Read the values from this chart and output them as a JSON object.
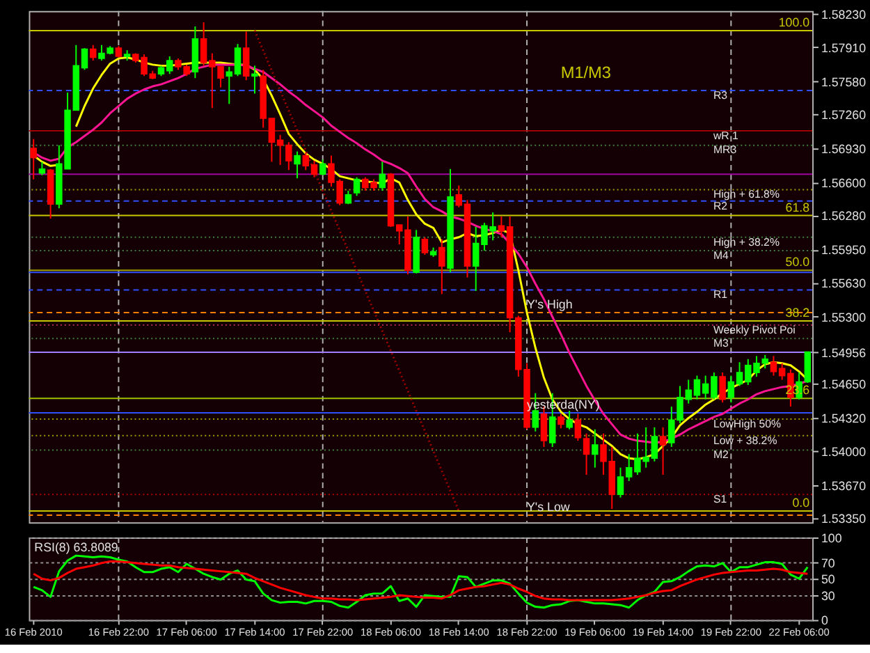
{
  "chart_data": [
    {
      "type": "candlestick",
      "categories": [
        "16 Feb 2010",
        null,
        null,
        null,
        null,
        null,
        null,
        null,
        null,
        null,
        "16 Feb 22:00",
        null,
        null,
        null,
        null,
        null,
        null,
        null,
        "17 Feb 06:00",
        null,
        null,
        null,
        null,
        null,
        null,
        null,
        "17 Feb 14:00",
        null,
        null,
        null,
        null,
        null,
        null,
        null,
        "17 Feb 22:00",
        null,
        null,
        null,
        null,
        null,
        null,
        null,
        "18 Feb 06:00",
        null,
        null,
        null,
        null,
        null,
        null,
        null,
        "18 Feb 14:00",
        null,
        null,
        null,
        null,
        null,
        null,
        null,
        "18 Feb 22:00",
        null,
        null,
        null,
        null,
        null,
        null,
        null,
        "19 Feb 06:00",
        null,
        null,
        null,
        null,
        null,
        null,
        null,
        "19 Feb 14:00",
        null,
        null,
        null,
        null,
        null,
        null,
        null,
        "19 Feb 22:00",
        null,
        null,
        null,
        null,
        null,
        null,
        null,
        "22 Feb 06:00",
        null
      ],
      "ohlc": [
        [
          1.5693,
          1.5702,
          1.5663,
          1.5684
        ],
        [
          1.5669,
          1.568,
          1.5667,
          1.5673
        ],
        [
          1.5672,
          1.5673,
          1.5625,
          1.5639
        ],
        [
          1.5639,
          1.5696,
          1.5635,
          1.5678
        ],
        [
          1.5673,
          1.5747,
          1.5673,
          1.573
        ],
        [
          1.573,
          1.5793,
          1.573,
          1.5773
        ],
        [
          1.5771,
          1.579,
          1.5769,
          1.5789
        ],
        [
          1.5789,
          1.5793,
          1.5778,
          1.5781
        ],
        [
          1.578,
          1.5793,
          1.5778,
          1.5785
        ],
        [
          1.5785,
          1.5792,
          1.5784,
          1.579
        ],
        [
          1.579,
          1.5792,
          1.5781,
          1.5782
        ],
        [
          1.5782,
          1.5788,
          1.5778,
          1.5784
        ],
        [
          1.5784,
          1.5785,
          1.5776,
          1.5778
        ],
        [
          1.5781,
          1.5784,
          1.5763,
          1.5765
        ],
        [
          1.5765,
          1.5768,
          1.576,
          1.5761
        ],
        [
          1.5765,
          1.5773,
          1.5763,
          1.5771
        ],
        [
          1.5768,
          1.5782,
          1.5765,
          1.5778
        ],
        [
          1.5778,
          1.578,
          1.5769,
          1.5772
        ],
        [
          1.5772,
          1.5774,
          1.5763,
          1.5765
        ],
        [
          1.5767,
          1.5811,
          1.5761,
          1.5799
        ],
        [
          1.5799,
          1.5815,
          1.5773,
          1.5776
        ],
        [
          1.5778,
          1.5785,
          1.5732,
          1.5772
        ],
        [
          1.5772,
          1.5772,
          1.5752,
          1.5761
        ],
        [
          1.5763,
          1.5772,
          1.5736,
          1.5767
        ],
        [
          1.5765,
          1.5794,
          1.5763,
          1.579
        ],
        [
          1.579,
          1.5806,
          1.5759,
          1.5763
        ],
        [
          1.5763,
          1.5773,
          1.5746,
          1.5765
        ],
        [
          1.5763,
          1.5769,
          1.5713,
          1.5722
        ],
        [
          1.5722,
          1.5722,
          1.568,
          1.5699
        ],
        [
          1.5701,
          1.5706,
          1.5677,
          1.5696
        ],
        [
          1.5696,
          1.5699,
          1.5672,
          1.5681
        ],
        [
          1.5678,
          1.569,
          1.5664,
          1.5686
        ],
        [
          1.5686,
          1.5689,
          1.5672,
          1.5676
        ],
        [
          1.5677,
          1.5681,
          1.5665,
          1.5668
        ],
        [
          1.5668,
          1.5682,
          1.5667,
          1.5678
        ],
        [
          1.5678,
          1.5686,
          1.5656,
          1.566
        ],
        [
          1.5661,
          1.5663,
          1.5638,
          1.564
        ],
        [
          1.564,
          1.5652,
          1.5639,
          1.5648
        ],
        [
          1.565,
          1.5665,
          1.5647,
          1.5663
        ],
        [
          1.5663,
          1.5665,
          1.5652,
          1.5655
        ],
        [
          1.566,
          1.5663,
          1.5652,
          1.5655
        ],
        [
          1.5655,
          1.568,
          1.5652,
          1.5668
        ],
        [
          1.5668,
          1.5669,
          1.5617,
          1.5618
        ],
        [
          1.5619,
          1.5619,
          1.56,
          1.5613
        ],
        [
          1.5614,
          1.5627,
          1.5571,
          1.5575
        ],
        [
          1.5573,
          1.5614,
          1.5572,
          1.5607
        ],
        [
          1.5605,
          1.5607,
          1.559,
          1.5592
        ],
        [
          1.559,
          1.5597,
          1.5588,
          1.5593
        ],
        [
          1.5597,
          1.5605,
          1.5552,
          1.5579
        ],
        [
          1.5577,
          1.5673,
          1.5573,
          1.5646
        ],
        [
          1.5648,
          1.5657,
          1.5636,
          1.5638
        ],
        [
          1.5639,
          1.5643,
          1.5568,
          1.5579
        ],
        [
          1.5579,
          1.5617,
          1.5555,
          1.5601
        ],
        [
          1.56,
          1.5621,
          1.5594,
          1.5618
        ],
        [
          1.5613,
          1.5631,
          1.5604,
          1.5617
        ],
        [
          1.5618,
          1.5627,
          1.5607,
          1.5613
        ],
        [
          1.5617,
          1.5627,
          1.5515,
          1.5529
        ],
        [
          1.5529,
          1.5531,
          1.5472,
          1.5479
        ],
        [
          1.5479,
          1.5485,
          1.5421,
          1.5423
        ],
        [
          1.5423,
          1.5456,
          1.5419,
          1.5439
        ],
        [
          1.5436,
          1.5443,
          1.5404,
          1.541
        ],
        [
          1.5408,
          1.5456,
          1.5404,
          1.5433
        ],
        [
          1.5433,
          1.5436,
          1.5422,
          1.5426
        ],
        [
          1.5423,
          1.5439,
          1.5421,
          1.543
        ],
        [
          1.543,
          1.5436,
          1.541,
          1.5413
        ],
        [
          1.5412,
          1.5417,
          1.5377,
          1.5397
        ],
        [
          1.5397,
          1.5421,
          1.5384,
          1.5406
        ],
        [
          1.5406,
          1.5417,
          1.5377,
          1.539
        ],
        [
          1.539,
          1.5404,
          1.5344,
          1.5358
        ],
        [
          1.5358,
          1.5384,
          1.5355,
          1.5375
        ],
        [
          1.5375,
          1.5397,
          1.5371,
          1.5384
        ],
        [
          1.538,
          1.5417,
          1.5377,
          1.5393
        ],
        [
          1.539,
          1.5423,
          1.5384,
          1.5394
        ],
        [
          1.5393,
          1.5423,
          1.539,
          1.5414
        ],
        [
          1.5414,
          1.5423,
          1.5377,
          1.5406
        ],
        [
          1.5408,
          1.5443,
          1.5404,
          1.543
        ],
        [
          1.543,
          1.5463,
          1.5427,
          1.5452
        ],
        [
          1.545,
          1.5469,
          1.5446,
          1.5459
        ],
        [
          1.5454,
          1.5473,
          1.545,
          1.5469
        ],
        [
          1.5456,
          1.5473,
          1.545,
          1.5465
        ],
        [
          1.5452,
          1.5476,
          1.545,
          1.5472
        ],
        [
          1.5472,
          1.5476,
          1.5447,
          1.545
        ],
        [
          1.5452,
          1.5473,
          1.5447,
          1.5467
        ],
        [
          1.5465,
          1.5486,
          1.5463,
          1.5476
        ],
        [
          1.5467,
          1.5489,
          1.5464,
          1.5483
        ],
        [
          1.5476,
          1.5492,
          1.5472,
          1.5485
        ],
        [
          1.5485,
          1.5493,
          1.548,
          1.5489
        ],
        [
          1.5486,
          1.5492,
          1.5473,
          1.5477
        ],
        [
          1.548,
          1.5485,
          1.5469,
          1.5473
        ],
        [
          1.5475,
          1.5479,
          1.5443,
          1.5452
        ],
        [
          1.5452,
          1.5476,
          1.545,
          1.5467
        ],
        [
          1.5467,
          1.5496,
          1.5466,
          1.5496
        ]
      ],
      "series": [
        {
          "type": "line",
          "color": "#ffff00",
          "values": [
            1.5686,
            1.568,
            1.5676,
            1.5677,
            null,
            1.5714,
            1.5734,
            1.5751,
            1.5764,
            1.5775,
            1.578,
            1.5781,
            1.5779,
            1.5776,
            1.5774,
            1.5773,
            1.5773,
            1.5774,
            1.5775,
            1.5776,
            1.5776,
            1.5776,
            1.5776,
            1.5775,
            1.5774,
            1.5774,
            1.5769,
            1.576,
            1.5744,
            1.5726,
            1.5707,
            1.5697,
            1.5688,
            1.5682,
            1.5678,
            1.5673,
            1.5666,
            1.5664,
            1.5662,
            1.5661,
            1.566,
            1.5659,
            1.5664,
            1.566,
            1.5643,
            1.5629,
            1.562,
            1.5616,
            1.5602,
            1.5605,
            1.5607,
            1.5611,
            1.5608,
            1.5609,
            1.5611,
            1.5614,
            1.5611,
            1.5575,
            1.5534,
            1.55,
            1.5471,
            1.545,
            1.5438,
            1.5431,
            1.5426,
            1.5423,
            1.5417,
            1.5411,
            1.5405,
            1.5397,
            1.5393,
            1.5392,
            1.5394,
            1.5397,
            1.5405,
            1.5413,
            1.5425,
            1.5432,
            1.5438,
            1.5445,
            1.545,
            1.5456,
            1.5461,
            1.5465,
            1.5469,
            1.5478,
            1.5484,
            1.5486,
            1.5485,
            1.5483,
            1.5477,
            1.5469
          ]
        },
        {
          "type": "line",
          "color": "#ff1493",
          "values": [
            1.5689,
            1.5684,
            1.5681,
            1.5683,
            1.5694,
            1.5699,
            1.5705,
            1.5711,
            1.5718,
            1.5727,
            1.5734,
            1.5741,
            1.5746,
            1.575,
            1.5753,
            1.5755,
            1.5758,
            1.5761,
            1.5765,
            1.577,
            1.5772,
            1.5774,
            1.5774,
            1.5774,
            1.5774,
            1.5773,
            1.577,
            1.5767,
            1.5761,
            1.5755,
            1.5748,
            1.5742,
            1.5735,
            1.5729,
            1.5723,
            1.5715,
            1.5709,
            1.5703,
            1.5698,
            1.5692,
            1.5687,
            1.5681,
            1.5678,
            1.5674,
            1.5669,
            1.5656,
            1.5644,
            1.5636,
            1.5632,
            1.5627,
            1.5625,
            1.5622,
            1.5618,
            1.5615,
            1.5613,
            1.561,
            1.5601,
            1.5591,
            1.5578,
            1.5562,
            1.5547,
            1.553,
            1.5513,
            1.5495,
            1.5479,
            1.5463,
            1.5449,
            1.5436,
            1.5426,
            1.5416,
            1.5412,
            1.541,
            1.5409,
            1.5408,
            1.5409,
            1.5412,
            1.5416,
            1.5421,
            1.5425,
            1.5429,
            1.5433,
            1.5436,
            1.5441,
            1.5446,
            1.545,
            1.5455,
            1.5458,
            1.546,
            1.5462,
            1.5463,
            1.5465,
            1.5468
          ]
        },
        {
          "type": "line",
          "color": "#a00000",
          "line_style": "dotted",
          "x": [
            "17 Feb 14:00",
            "18 Feb 14:00"
          ],
          "values": [
            1.5807,
            1.5342
          ]
        }
      ],
      "ylim": [
        1.5331,
        1.5826
      ],
      "yticks": [
        {
          "value": 1.5823,
          "label": "1.58230"
        },
        {
          "value": 1.5791,
          "label": "1.57910"
        },
        {
          "value": 1.5758,
          "label": "1.57580"
        },
        {
          "value": 1.5726,
          "label": "1.57260"
        },
        {
          "value": 1.5693,
          "label": "1.56930"
        },
        {
          "value": 1.566,
          "label": "1.56600"
        },
        {
          "value": 1.5628,
          "label": "1.56280"
        },
        {
          "value": 1.5595,
          "label": "1.55950"
        },
        {
          "value": 1.5563,
          "label": "1.55630"
        },
        {
          "value": 1.553,
          "label": "1.55300"
        },
        {
          "value": 1.54956,
          "label": "1.54956"
        },
        {
          "value": 1.5465,
          "label": "1.54650"
        },
        {
          "value": 1.5432,
          "label": "1.54320"
        },
        {
          "value": 1.54,
          "label": "1.54000"
        },
        {
          "value": 1.5367,
          "label": "1.53670"
        },
        {
          "value": 1.5335,
          "label": "1.53350"
        }
      ],
      "tick_labels": "y",
      "ref_lines": [
        {
          "axis": "x",
          "value": "16 Feb 22:00",
          "color": "#b0b0b0",
          "line_style": "dashed"
        },
        {
          "axis": "x",
          "value": "17 Feb 22:00",
          "color": "#b0b0b0",
          "line_style": "dashed"
        },
        {
          "axis": "x",
          "value": "18 Feb 22:00",
          "color": "#b0b0b0",
          "line_style": "dashed"
        },
        {
          "axis": "x",
          "value": "19 Feb 22:00",
          "color": "#b0b0b0",
          "line_style": "dashed"
        },
        {
          "axis": "y",
          "value": 1.5807,
          "color": "#c8c800"
        },
        {
          "axis": "y",
          "value": 1.5749,
          "label": "R3",
          "color": "#3050ff",
          "line_style": "dashed"
        },
        {
          "axis": "y",
          "value": 1.571,
          "label": "wR 1",
          "color": "#b00000"
        },
        {
          "axis": "y",
          "value": 1.5696,
          "label": "MR3",
          "color": "#408040",
          "line_style": "dotted"
        },
        {
          "axis": "y",
          "value": 1.5668,
          "color": "#a000a0"
        },
        {
          "axis": "y",
          "value": 1.5653,
          "label": "High + 61.8%",
          "color": "#a0a000",
          "line_style": "dotted"
        },
        {
          "axis": "y",
          "value": 1.5642,
          "label": "R2",
          "color": "#3050ff",
          "line_style": "dashed"
        },
        {
          "axis": "y",
          "value": 1.5628,
          "color": "#c8c800"
        },
        {
          "axis": "y",
          "value": 1.5607,
          "label": "High + 38.2%",
          "color": "#408040",
          "line_style": "dotted"
        },
        {
          "axis": "y",
          "value": 1.5594,
          "label": "M4",
          "color": "#408040",
          "line_style": "dotted"
        },
        {
          "axis": "y",
          "value": 1.5575,
          "color": "#a0a000"
        },
        {
          "axis": "y",
          "value": 1.5573,
          "color": "#3050ff"
        },
        {
          "axis": "y",
          "value": 1.5556,
          "label": "R1",
          "color": "#3050ff",
          "line_style": "dashed"
        },
        {
          "axis": "y",
          "value": 1.5534,
          "color": "#ff8000",
          "line_style": "dashed"
        },
        {
          "axis": "y",
          "value": 1.5526,
          "color": "#c8c800"
        },
        {
          "axis": "y",
          "value": 1.5522,
          "label": "Weekly Pivot Poi",
          "color": "#c03060",
          "line_style": "dotted"
        },
        {
          "axis": "y",
          "value": 1.5509,
          "label": "M3",
          "color": "#408040",
          "line_style": "dotted"
        },
        {
          "axis": "y",
          "value": 1.54956,
          "color": "#a080ff"
        },
        {
          "axis": "y",
          "value": 1.5451,
          "color": "#a0c000"
        },
        {
          "axis": "y",
          "value": 1.5437,
          "color": "#3050ff"
        },
        {
          "axis": "y",
          "value": 1.5431,
          "label": "LowHigh 50%",
          "color": "#a0a000",
          "line_style": "dotted"
        },
        {
          "axis": "y",
          "value": 1.5415,
          "label": "Low + 38.2%",
          "color": "#a0a000",
          "line_style": "dotted"
        },
        {
          "axis": "y",
          "value": 1.5401,
          "label": "M2",
          "color": "#408040",
          "line_style": "dotted"
        },
        {
          "axis": "y",
          "value": 1.5358,
          "label": "S1",
          "color": "#b00000",
          "line_style": "dotted"
        },
        {
          "axis": "y",
          "value": 1.5342,
          "color": "#c8c800"
        },
        {
          "axis": "y",
          "value": 1.5338,
          "color": "#ff8000",
          "line_style": "dashed"
        }
      ],
      "annotations": [
        "M1/M3",
        {
          "text": "100.0",
          "y": 1.5807
        },
        {
          "text": "61.8",
          "y": 1.5628
        },
        {
          "text": "50.0",
          "y": 1.5575
        },
        {
          "text": "38.2",
          "y": 1.5526
        },
        {
          "text": "23.6",
          "y": 1.5451
        },
        {
          "text": "0.0",
          "y": 1.5342
        },
        {
          "text": "Y's High",
          "x": "18 Feb 22:00",
          "y": 1.5534
        },
        {
          "text": "yesterda(NY)",
          "x": "18 Feb 22:00",
          "y": 1.5437
        },
        {
          "text": "Y's Low",
          "x": "18 Feb 22:00",
          "y": 1.5338
        }
      ]
    },
    {
      "type": "line",
      "title": "RSI(8) 63.8089",
      "categories": [
        "16 Feb 2010",
        null,
        null,
        null,
        null,
        null,
        null,
        null,
        null,
        null,
        "16 Feb 22:00",
        null,
        null,
        null,
        null,
        null,
        null,
        null,
        "17 Feb 06:00",
        null,
        null,
        null,
        null,
        null,
        null,
        null,
        "17 Feb 14:00",
        null,
        null,
        null,
        null,
        null,
        null,
        null,
        "17 Feb 22:00",
        null,
        null,
        null,
        null,
        null,
        null,
        null,
        "18 Feb 06:00",
        null,
        null,
        null,
        null,
        null,
        null,
        null,
        "18 Feb 14:00",
        null,
        null,
        null,
        null,
        null,
        null,
        null,
        "18 Feb 22:00",
        null,
        null,
        null,
        null,
        null,
        null,
        null,
        "19 Feb 06:00",
        null,
        null,
        null,
        null,
        null,
        null,
        null,
        "19 Feb 14:00",
        null,
        null,
        null,
        null,
        null,
        null,
        null,
        "19 Feb 22:00",
        null,
        null,
        null,
        null,
        null,
        null,
        null,
        "22 Feb 06:00",
        null
      ],
      "series": [
        {
          "color": "#00ff00",
          "values": [
            40,
            36,
            28,
            59,
            72,
            78,
            77,
            76,
            77,
            76,
            73,
            71,
            64,
            58,
            58,
            62,
            64,
            58,
            68,
            62,
            56,
            52,
            49,
            56,
            60,
            49,
            47,
            32,
            24,
            21,
            22,
            22,
            20,
            23,
            23,
            22,
            17,
            15,
            22,
            30,
            32,
            32,
            41,
            23,
            26,
            16,
            30,
            29,
            28,
            28,
            53,
            52,
            40,
            44,
            48,
            48,
            44,
            32,
            21,
            16,
            15,
            18,
            19,
            23,
            24,
            22,
            20,
            20,
            19,
            18,
            15,
            24,
            30,
            34,
            46,
            47,
            52,
            59,
            65,
            66,
            65,
            69,
            58,
            64,
            64,
            67,
            70,
            70,
            68,
            55,
            50,
            64
          ]
        },
        {
          "color": "#ff0000",
          "values": [
            56,
            50,
            48,
            51,
            57,
            62,
            64,
            66,
            69,
            71,
            71,
            70,
            69,
            68,
            67,
            66,
            66,
            64,
            63,
            62,
            61,
            60,
            59,
            58,
            57,
            56,
            51,
            47,
            43,
            39,
            36,
            33,
            30,
            28,
            26,
            26,
            25,
            25,
            24,
            25,
            26,
            27,
            28,
            30,
            29,
            28,
            27,
            27,
            26,
            30,
            36,
            38,
            40,
            41,
            43,
            45,
            43,
            38,
            34,
            29,
            26,
            25,
            25,
            24,
            24,
            24,
            24,
            24,
            24,
            25,
            26,
            28,
            30,
            33,
            35,
            36,
            41,
            45,
            49,
            52,
            55,
            57,
            58,
            59,
            60,
            60,
            61,
            62,
            61,
            58,
            57,
            56
          ]
        }
      ],
      "ylim": [
        0,
        100
      ],
      "yticks": [
        0,
        30,
        50,
        70,
        100
      ],
      "grid": "y",
      "ref_lines": [
        {
          "axis": "x",
          "value": "16 Feb 22:00",
          "color": "#b0b0b0",
          "line_style": "dashed"
        },
        {
          "axis": "x",
          "value": "17 Feb 22:00",
          "color": "#b0b0b0",
          "line_style": "dashed"
        },
        {
          "axis": "x",
          "value": "18 Feb 22:00",
          "color": "#b0b0b0",
          "line_style": "dashed"
        },
        {
          "axis": "x",
          "value": "19 Feb 22:00",
          "color": "#b0b0b0",
          "line_style": "dashed"
        }
      ]
    }
  ]
}
